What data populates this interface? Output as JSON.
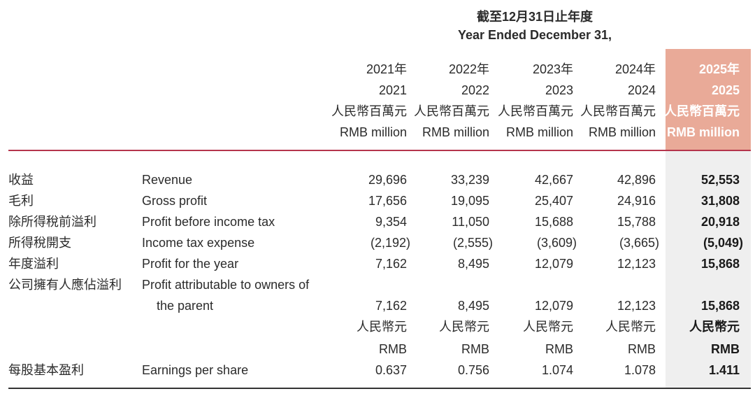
{
  "title_zh": "截至12月31日止年度",
  "title_en": "Year Ended December 31,",
  "columns": [
    {
      "year_zh": "2021年",
      "year": "2021",
      "unit_zh": "人民幣百萬元",
      "unit_en": "RMB million"
    },
    {
      "year_zh": "2022年",
      "year": "2022",
      "unit_zh": "人民幣百萬元",
      "unit_en": "RMB million"
    },
    {
      "year_zh": "2023年",
      "year": "2023",
      "unit_zh": "人民幣百萬元",
      "unit_en": "RMB million"
    },
    {
      "year_zh": "2024年",
      "year": "2024",
      "unit_zh": "人民幣百萬元",
      "unit_en": "RMB million"
    },
    {
      "year_zh": "2025年",
      "year": "2025",
      "unit_zh": "人民幣百萬元",
      "unit_en": "RMB million"
    }
  ],
  "rows": [
    {
      "zh": "收益",
      "en": "Revenue",
      "values": [
        "29,696",
        "33,239",
        "42,667",
        "42,896",
        "52,553"
      ]
    },
    {
      "zh": "毛利",
      "en": "Gross profit",
      "values": [
        "17,656",
        "19,095",
        "25,407",
        "24,916",
        "31,808"
      ]
    },
    {
      "zh": "除所得稅前溢利",
      "en": "Profit before income tax",
      "values": [
        "9,354",
        "11,050",
        "15,688",
        "15,788",
        "20,918"
      ]
    },
    {
      "zh": "所得稅開支",
      "en": "Income tax expense",
      "values": [
        "(2,192)",
        "(2,555)",
        "(3,609)",
        "(3,665)",
        "(5,049)"
      ]
    },
    {
      "zh": "年度溢利",
      "en": "Profit for the year",
      "values": [
        "7,162",
        "8,495",
        "12,079",
        "12,123",
        "15,868"
      ]
    }
  ],
  "attributable": {
    "zh": "公司擁有人應佔溢利",
    "en_line1": "Profit attributable to owners of",
    "en_line2": "the parent",
    "values": [
      "7,162",
      "8,495",
      "12,079",
      "12,123",
      "15,868"
    ]
  },
  "eps_units": {
    "zh": "人民幣元",
    "en": "RMB"
  },
  "eps": {
    "zh": "每股基本盈利",
    "en": "Earnings per share",
    "values": [
      "0.637",
      "0.756",
      "1.074",
      "1.078",
      "1.411"
    ]
  },
  "colors": {
    "highlight_header": "#e9aa98",
    "highlight_column": "#efefef",
    "rule_top": "#b5354c"
  }
}
